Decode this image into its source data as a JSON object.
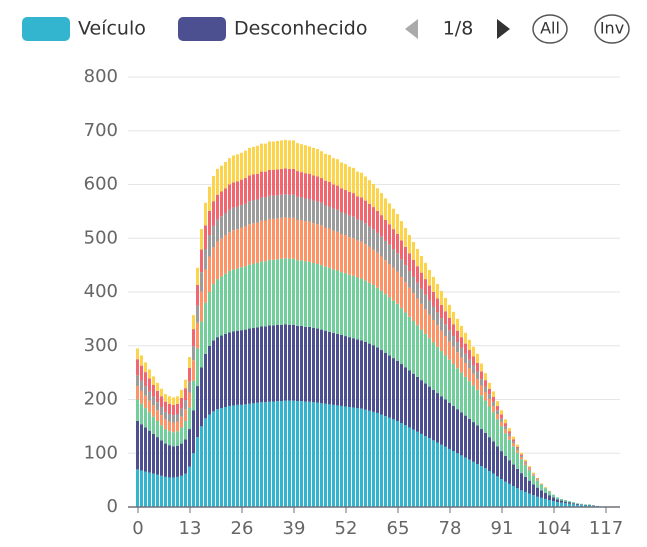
{
  "chart_data": {
    "type": "stacked_bar",
    "categories": [
      0,
      null,
      null,
      null,
      null,
      null,
      null,
      null,
      null,
      null,
      null,
      null,
      null,
      13,
      null,
      null,
      null,
      null,
      null,
      null,
      null,
      null,
      null,
      null,
      null,
      null,
      26,
      null,
      null,
      null,
      null,
      null,
      null,
      null,
      null,
      null,
      null,
      null,
      null,
      39,
      null,
      null,
      null,
      null,
      null,
      null,
      null,
      null,
      null,
      null,
      null,
      null,
      52,
      null,
      null,
      null,
      null,
      null,
      null,
      null,
      null,
      null,
      null,
      null,
      null,
      65,
      null,
      null,
      null,
      null,
      null,
      null,
      null,
      null,
      null,
      null,
      null,
      null,
      78,
      null,
      null,
      null,
      null,
      null,
      null,
      null,
      null,
      null,
      null,
      null,
      null,
      91,
      null,
      null,
      null,
      null,
      null,
      null,
      null,
      null,
      null,
      null,
      null,
      null,
      104,
      null,
      null,
      null,
      null,
      null,
      null,
      null,
      null,
      null,
      null,
      null,
      null,
      117,
      null,
      null,
      null
    ],
    "ylim": [
      0,
      800
    ],
    "yticks": [
      0,
      100,
      200,
      300,
      400,
      500,
      600,
      700,
      800
    ],
    "grid": true,
    "pager": "1/8",
    "buttons": [
      "All",
      "Inv"
    ],
    "series": [
      {
        "name": "Veículo",
        "color": "#33b5cf",
        "values": [
          70,
          68,
          66,
          64,
          62,
          60,
          58,
          56,
          55,
          55,
          56,
          58,
          62,
          75,
          100,
          130,
          150,
          165,
          172,
          178,
          182,
          184,
          186,
          188,
          189,
          190,
          190,
          191,
          192,
          193,
          194,
          195,
          195,
          196,
          196,
          197,
          197,
          198,
          198,
          198,
          197,
          197,
          196,
          196,
          195,
          194,
          193,
          192,
          191,
          190,
          189,
          188,
          187,
          186,
          185,
          184,
          183,
          181,
          179,
          177,
          175,
          172,
          169,
          166,
          163,
          160,
          156,
          152,
          148,
          144,
          140,
          136,
          132,
          128,
          124,
          120,
          116,
          112,
          108,
          104,
          100,
          96,
          92,
          88,
          84,
          80,
          76,
          72,
          67,
          62,
          57,
          52,
          47,
          43,
          39,
          35,
          31,
          28,
          25,
          22,
          19,
          17,
          15,
          13,
          11,
          9,
          8,
          7,
          6,
          5,
          4,
          4,
          3,
          3,
          2,
          2,
          1,
          1,
          1,
          0,
          0
        ]
      },
      {
        "name": "Desconhecido",
        "color": "#4d5090",
        "values": [
          90,
          86,
          82,
          78,
          74,
          70,
          66,
          62,
          60,
          58,
          58,
          60,
          64,
          70,
          80,
          95,
          110,
          120,
          128,
          132,
          134,
          135,
          136,
          137,
          138,
          138,
          139,
          139,
          140,
          140,
          140,
          141,
          141,
          142,
          142,
          142,
          142,
          142,
          141,
          141,
          140,
          140,
          139,
          139,
          138,
          138,
          137,
          136,
          135,
          134,
          133,
          132,
          131,
          130,
          129,
          128,
          127,
          126,
          125,
          124,
          122,
          120,
          118,
          116,
          114,
          112,
          110,
          108,
          106,
          104,
          102,
          100,
          98,
          96,
          94,
          92,
          90,
          88,
          86,
          84,
          82,
          80,
          78,
          76,
          74,
          72,
          69,
          66,
          63,
          60,
          56,
          52,
          48,
          44,
          40,
          36,
          32,
          28,
          24,
          20,
          17,
          14,
          11,
          9,
          7,
          5,
          4,
          3,
          3,
          2,
          2,
          1,
          1,
          1,
          1,
          0,
          0,
          0,
          0,
          0,
          0
        ]
      },
      {
        "color": "#72cf9c",
        "values": [
          40,
          38,
          36,
          34,
          32,
          30,
          28,
          27,
          26,
          26,
          27,
          30,
          34,
          40,
          55,
          70,
          85,
          95,
          100,
          105,
          108,
          110,
          112,
          114,
          115,
          116,
          117,
          118,
          119,
          120,
          120,
          121,
          121,
          122,
          122,
          122,
          123,
          123,
          123,
          123,
          122,
          122,
          122,
          121,
          121,
          120,
          120,
          119,
          119,
          118,
          118,
          117,
          117,
          116,
          116,
          115,
          115,
          114,
          113,
          112,
          111,
          110,
          109,
          108,
          107,
          106,
          104,
          102,
          100,
          98,
          96,
          94,
          92,
          90,
          88,
          86,
          84,
          82,
          80,
          78,
          76,
          74,
          72,
          70,
          68,
          66,
          63,
          60,
          57,
          54,
          50,
          46,
          42,
          38,
          34,
          30,
          26,
          22,
          19,
          16,
          13,
          11,
          9,
          7,
          5,
          4,
          3,
          3,
          2,
          2,
          1,
          1,
          1,
          1,
          0,
          0,
          0,
          0,
          0,
          0,
          0
        ]
      },
      {
        "color": "#fd9467",
        "values": [
          25,
          24,
          23,
          22,
          21,
          20,
          19,
          18,
          18,
          18,
          18,
          20,
          22,
          28,
          38,
          48,
          56,
          62,
          66,
          68,
          70,
          71,
          72,
          72,
          73,
          73,
          74,
          74,
          75,
          75,
          75,
          76,
          76,
          76,
          76,
          76,
          76,
          76,
          76,
          76,
          75,
          75,
          75,
          75,
          74,
          74,
          74,
          73,
          73,
          72,
          72,
          71,
          71,
          70,
          70,
          69,
          69,
          68,
          67,
          66,
          65,
          64,
          63,
          62,
          61,
          60,
          58,
          56,
          54,
          52,
          50,
          48,
          46,
          44,
          42,
          40,
          38,
          36,
          34,
          32,
          30,
          28,
          26,
          24,
          22,
          20,
          18,
          16,
          14,
          12,
          10,
          9,
          8,
          7,
          6,
          5,
          4,
          3,
          3,
          2,
          2,
          1,
          1,
          1,
          0,
          0,
          0,
          0,
          0,
          0,
          0,
          0,
          0,
          0,
          0,
          0,
          0,
          0,
          0,
          0,
          0
        ]
      },
      {
        "color": "#9c9c9c",
        "values": [
          20,
          19,
          18,
          17,
          16,
          15,
          15,
          14,
          14,
          14,
          14,
          15,
          17,
          20,
          26,
          32,
          36,
          38,
          40,
          40,
          41,
          41,
          41,
          42,
          42,
          42,
          42,
          42,
          43,
          43,
          43,
          43,
          43,
          43,
          43,
          43,
          43,
          43,
          43,
          43,
          43,
          42,
          42,
          42,
          42,
          42,
          42,
          41,
          41,
          41,
          41,
          40,
          40,
          40,
          40,
          39,
          39,
          39,
          38,
          38,
          37,
          37,
          36,
          36,
          35,
          34,
          33,
          32,
          31,
          30,
          29,
          28,
          27,
          26,
          25,
          24,
          23,
          22,
          21,
          20,
          19,
          18,
          17,
          16,
          15,
          14,
          12,
          10,
          9,
          8,
          7,
          6,
          5,
          4,
          3,
          3,
          2,
          2,
          1,
          1,
          1,
          0,
          0,
          0,
          0,
          0,
          0,
          0,
          0,
          0,
          0,
          0,
          0,
          0,
          0,
          0,
          0,
          0,
          0,
          0,
          0
        ]
      },
      {
        "color": "#f2676f",
        "values": [
          30,
          28,
          26,
          24,
          22,
          21,
          20,
          19,
          19,
          19,
          19,
          20,
          22,
          26,
          32,
          38,
          42,
          44,
          45,
          46,
          46,
          46,
          46,
          47,
          47,
          47,
          47,
          48,
          48,
          48,
          48,
          48,
          48,
          48,
          48,
          48,
          48,
          48,
          48,
          48,
          48,
          47,
          47,
          47,
          47,
          47,
          46,
          46,
          46,
          45,
          45,
          45,
          44,
          44,
          44,
          43,
          43,
          42,
          42,
          41,
          41,
          40,
          39,
          38,
          37,
          36,
          35,
          34,
          33,
          32,
          31,
          30,
          29,
          28,
          27,
          26,
          25,
          24,
          23,
          22,
          21,
          20,
          19,
          18,
          17,
          16,
          14,
          12,
          10,
          9,
          8,
          7,
          6,
          5,
          4,
          3,
          3,
          2,
          2,
          1,
          1,
          0,
          0,
          0,
          0,
          0,
          0,
          0,
          0,
          0,
          0,
          0,
          0,
          0,
          0,
          0,
          0,
          0,
          0,
          0,
          0
        ]
      },
      {
        "color": "#fbd44c",
        "values": [
          20,
          19,
          18,
          17,
          16,
          15,
          14,
          14,
          14,
          14,
          14,
          15,
          16,
          20,
          26,
          32,
          38,
          42,
          45,
          47,
          48,
          48,
          49,
          49,
          50,
          50,
          50,
          51,
          51,
          51,
          52,
          52,
          52,
          53,
          53,
          53,
          53,
          53,
          53,
          53,
          52,
          52,
          52,
          51,
          51,
          51,
          50,
          50,
          50,
          49,
          49,
          48,
          48,
          47,
          47,
          46,
          46,
          45,
          44,
          43,
          42,
          41,
          40,
          39,
          38,
          37,
          36,
          35,
          34,
          33,
          32,
          31,
          30,
          29,
          28,
          27,
          26,
          25,
          24,
          23,
          22,
          21,
          20,
          19,
          18,
          17,
          15,
          13,
          11,
          10,
          9,
          8,
          7,
          6,
          5,
          4,
          3,
          3,
          2,
          2,
          1,
          1,
          1,
          0,
          0,
          0,
          0,
          0,
          0,
          0,
          0,
          0,
          0,
          0,
          0,
          0,
          0,
          0,
          0,
          0,
          0
        ]
      }
    ]
  }
}
